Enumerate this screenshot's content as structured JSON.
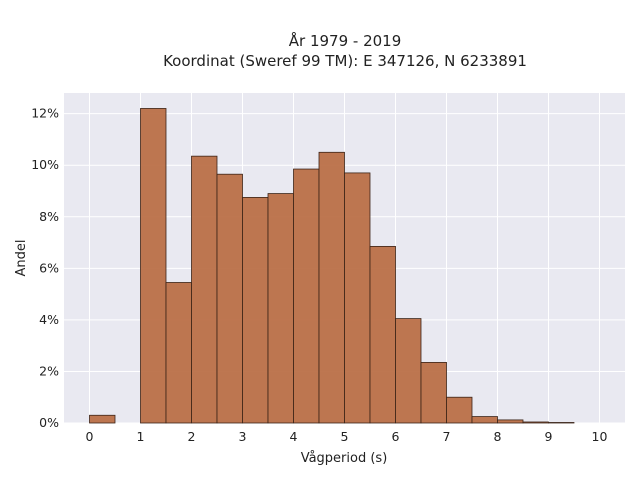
{
  "chart_data": {
    "type": "bar",
    "title_lines": [
      "År 1979 - 2019",
      "Koordinat (Sweref 99 TM): E 347126, N 6233891"
    ],
    "xlabel": "Vågperiod (s)",
    "ylabel": "Andel",
    "bin_width": 0.5,
    "bins": [
      {
        "x_start": 0.0,
        "value": 0.3
      },
      {
        "x_start": 0.5,
        "value": 0.0
      },
      {
        "x_start": 1.0,
        "value": 12.2
      },
      {
        "x_start": 1.5,
        "value": 5.45
      },
      {
        "x_start": 2.0,
        "value": 10.35
      },
      {
        "x_start": 2.5,
        "value": 9.65
      },
      {
        "x_start": 3.0,
        "value": 8.75
      },
      {
        "x_start": 3.5,
        "value": 8.9
      },
      {
        "x_start": 4.0,
        "value": 9.85
      },
      {
        "x_start": 4.5,
        "value": 10.5
      },
      {
        "x_start": 5.0,
        "value": 9.7
      },
      {
        "x_start": 5.5,
        "value": 6.85
      },
      {
        "x_start": 6.0,
        "value": 4.05
      },
      {
        "x_start": 6.5,
        "value": 2.35
      },
      {
        "x_start": 7.0,
        "value": 1.0
      },
      {
        "x_start": 7.5,
        "value": 0.25
      },
      {
        "x_start": 8.0,
        "value": 0.12
      },
      {
        "x_start": 8.5,
        "value": 0.04
      },
      {
        "x_start": 9.0,
        "value": 0.02
      }
    ],
    "xlim": [
      -0.5,
      10.5
    ],
    "ylim": [
      0,
      12.8
    ],
    "x_ticks": [
      0,
      1,
      2,
      3,
      4,
      5,
      6,
      7,
      8,
      9,
      10
    ],
    "y_ticks": [
      0,
      2,
      4,
      6,
      8,
      10,
      12
    ],
    "y_tick_suffix": "%",
    "grid": true,
    "colors": {
      "bar_fill": "#b86b42",
      "bar_stroke": "#3b2418",
      "plot_background": "#e9e9f1",
      "grid": "#ffffff"
    }
  }
}
